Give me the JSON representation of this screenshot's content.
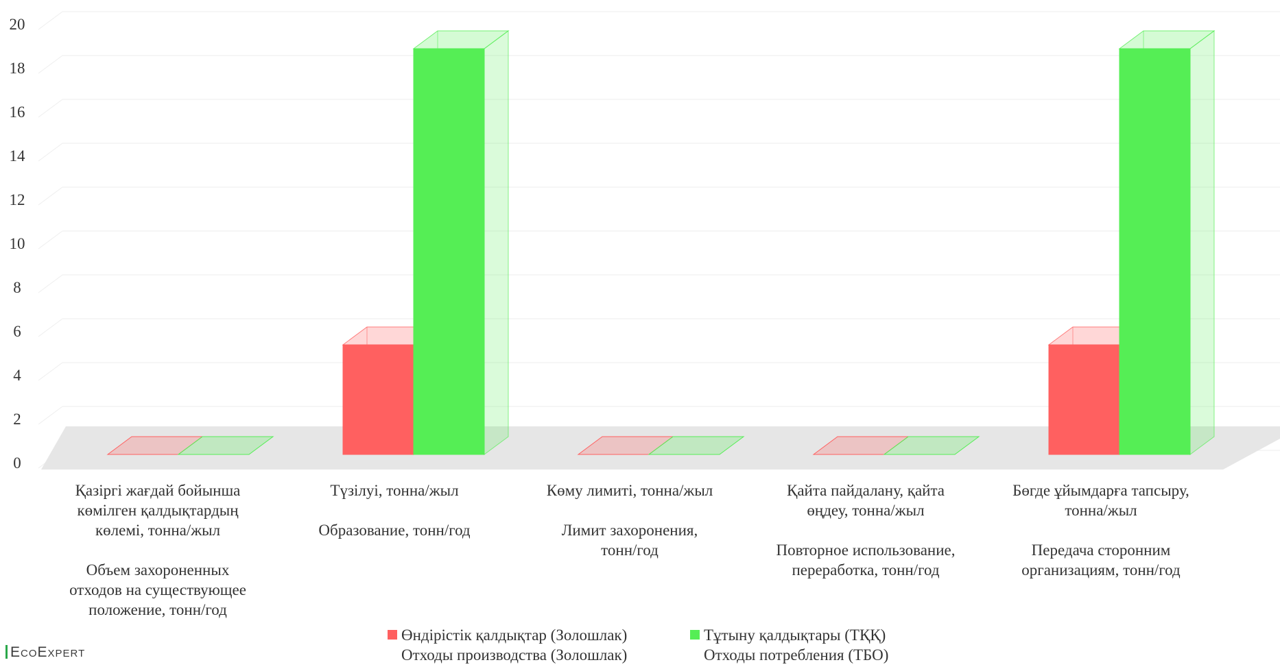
{
  "chart_data": {
    "type": "bar",
    "y_ticks": [
      "0",
      "2",
      "4",
      "6",
      "8",
      "10",
      "12",
      "14",
      "16",
      "18",
      "20"
    ],
    "ylim": [
      0,
      20
    ],
    "grid": true,
    "legend_position": "bottom",
    "categories": [
      [
        "Қазіргі жағдай бойынша",
        "көмілген қалдықтардың",
        "көлемі, тонна/жыл",
        "",
        "Объем захороненных",
        "отходов на существующее",
        "положение, тонн/год"
      ],
      [
        "Түзілуі, тонна/жыл",
        "",
        "Образование, тонн/год"
      ],
      [
        "Көму лимиті, тонна/жыл",
        "",
        "Лимит захоронения,",
        "тонн/год"
      ],
      [
        "Қайта пайдалану, қайта",
        "өңдеу, тонна/жыл",
        "",
        "Повторное использование,",
        "переработка, тонн/год"
      ],
      [
        "Бөгде ұйымдарға тапсыру,",
        "тонна/жыл",
        "",
        "Передача сторонним",
        "организациям, тонн/год"
      ]
    ],
    "series": [
      {
        "name": [
          "Өндірістік қалдықтар  (Золошлак)",
          "Отходы производства (Золошлак)"
        ],
        "color": "#ff6060",
        "values": [
          0,
          5,
          0,
          0,
          5
        ]
      },
      {
        "name": [
          "Тұтыну қалдықтары (ТҚҚ)",
          "Отходы потребления (ТБО)"
        ],
        "color": "#55ee55",
        "values": [
          0,
          18.5,
          0,
          0,
          18.5
        ]
      }
    ]
  },
  "watermark": "EcoExpert"
}
